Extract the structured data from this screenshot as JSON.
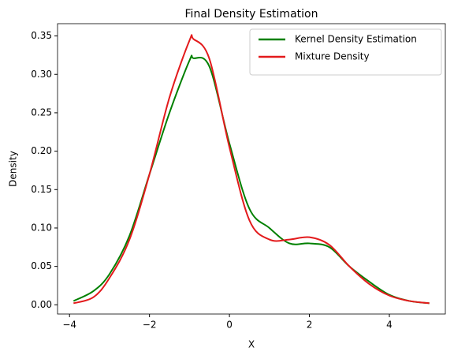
{
  "chart_data": {
    "type": "line",
    "title": "Final Density Estimation",
    "x_label": "X",
    "y_label": "Density",
    "x": [
      -3.9,
      -3.4,
      -3.0,
      -2.5,
      -2.0,
      -1.5,
      -1.0,
      -0.9,
      -0.5,
      0,
      0.5,
      1.0,
      1.5,
      2.0,
      2.5,
      3.0,
      3.5,
      4.0,
      4.5,
      5.0
    ],
    "series": [
      {
        "name": "Kernel Density Estimation",
        "color": "#008000",
        "values": [
          0.005,
          0.018,
          0.04,
          0.09,
          0.17,
          0.25,
          0.318,
          0.321,
          0.31,
          0.21,
          0.125,
          0.1,
          0.08,
          0.08,
          0.075,
          0.05,
          0.03,
          0.013,
          0.005,
          0.002
        ]
      },
      {
        "name": "Mixture Density",
        "color": "#e31a1c",
        "values": [
          0.002,
          0.01,
          0.035,
          0.085,
          0.17,
          0.27,
          0.344,
          0.346,
          0.32,
          0.205,
          0.11,
          0.085,
          0.085,
          0.088,
          0.078,
          0.05,
          0.027,
          0.012,
          0.005,
          0.002
        ]
      }
    ],
    "xlim": [
      -4.3,
      5.4
    ],
    "xticks": [
      {
        "value": -4,
        "label": "−4"
      },
      {
        "value": -2,
        "label": "−2"
      },
      0,
      2,
      4
    ],
    "ylim": [
      -0.012,
      0.366
    ],
    "yticks": [
      {
        "value": 0,
        "label": "0.00"
      },
      {
        "value": 0.05,
        "label": "0.05"
      },
      {
        "value": 0.1,
        "label": "0.10"
      },
      {
        "value": 0.15,
        "label": "0.15"
      },
      {
        "value": 0.2,
        "label": "0.20"
      },
      {
        "value": 0.25,
        "label": "0.25"
      },
      {
        "value": 0.3,
        "label": "0.30"
      },
      {
        "value": 0.35,
        "label": "0.35"
      }
    ],
    "grid": false,
    "legend": "upper right"
  }
}
